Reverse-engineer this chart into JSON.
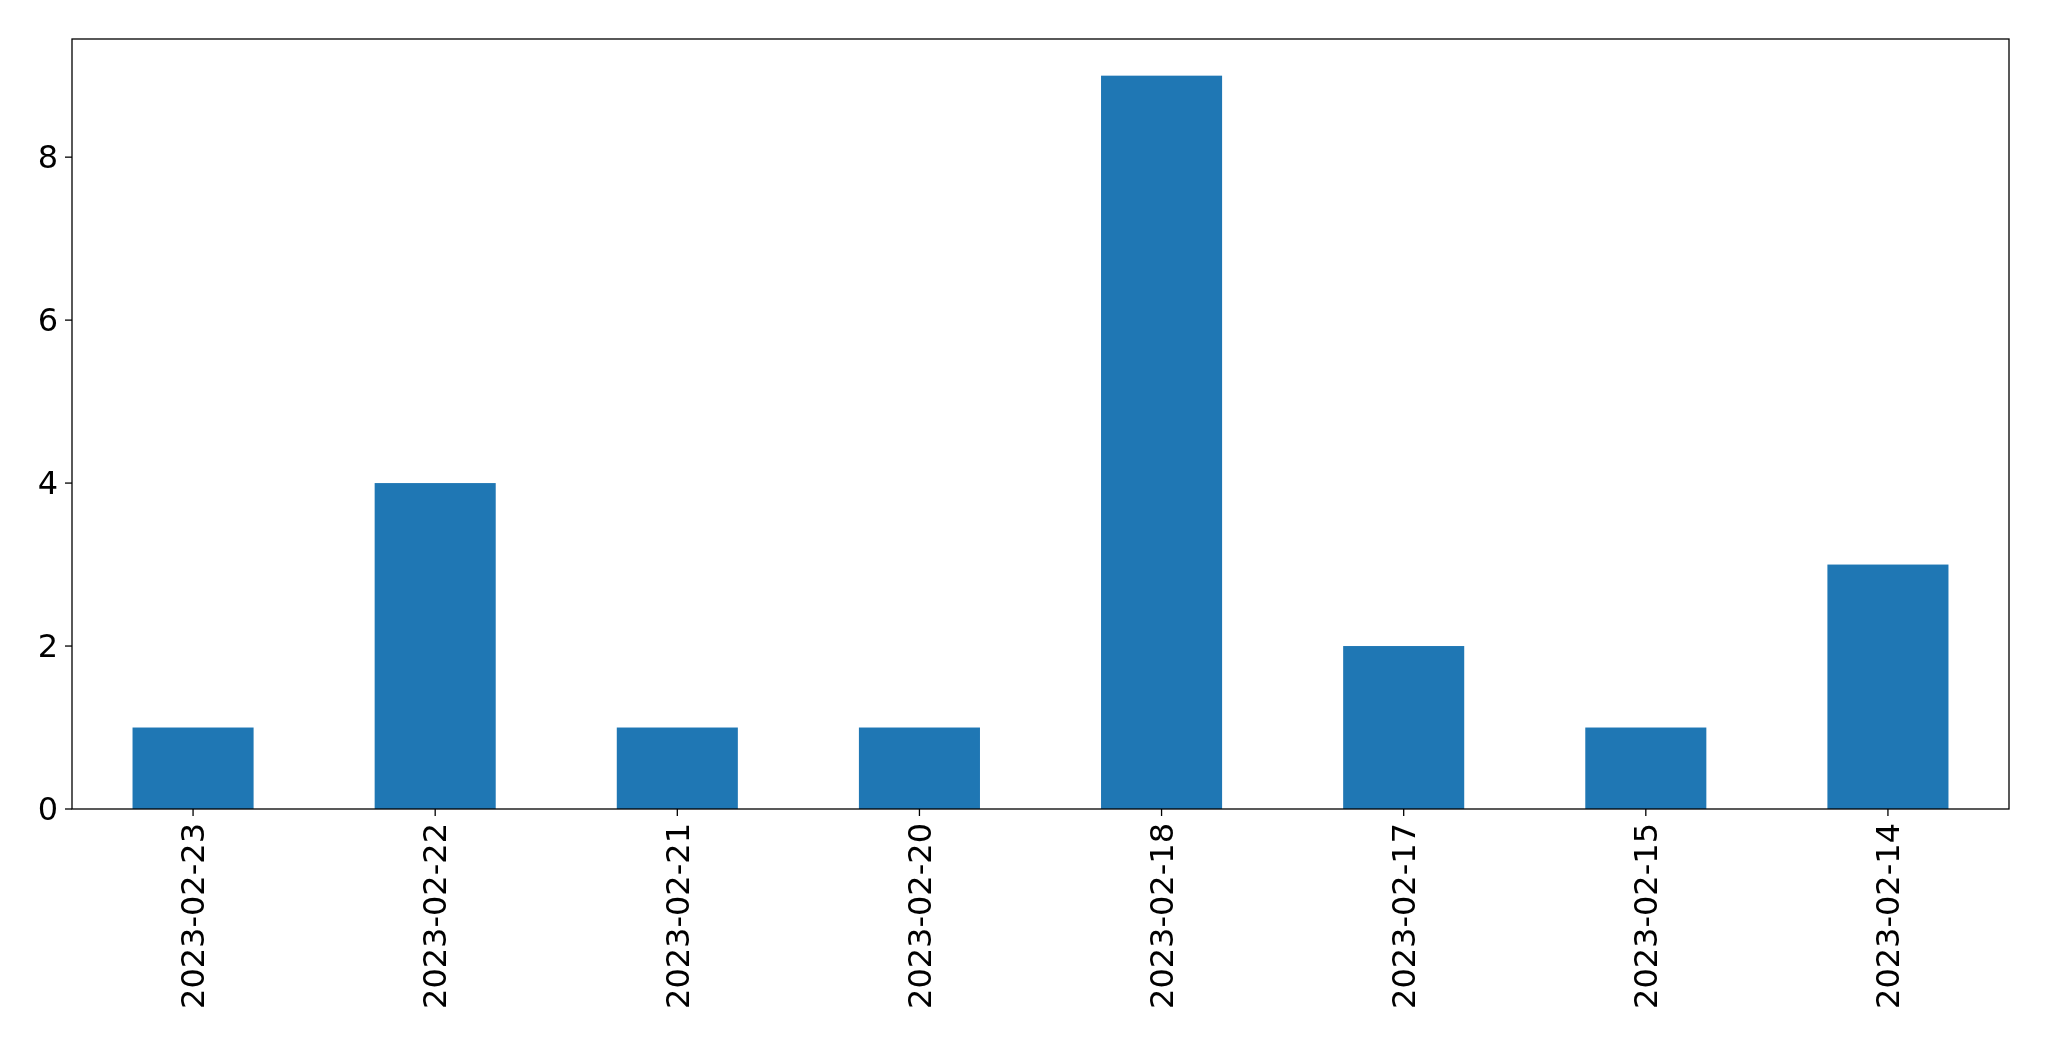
{
  "chart_data": {
    "type": "bar",
    "categories": [
      "2023-02-23",
      "2023-02-22",
      "2023-02-21",
      "2023-02-20",
      "2023-02-18",
      "2023-02-17",
      "2023-02-15",
      "2023-02-14"
    ],
    "values": [
      1,
      4,
      1,
      1,
      9,
      2,
      1,
      3
    ],
    "color": "#1f77b4",
    "ylim": [
      0,
      9.45
    ],
    "yticks": [
      0,
      2,
      4,
      6,
      8
    ],
    "grid": false
  }
}
